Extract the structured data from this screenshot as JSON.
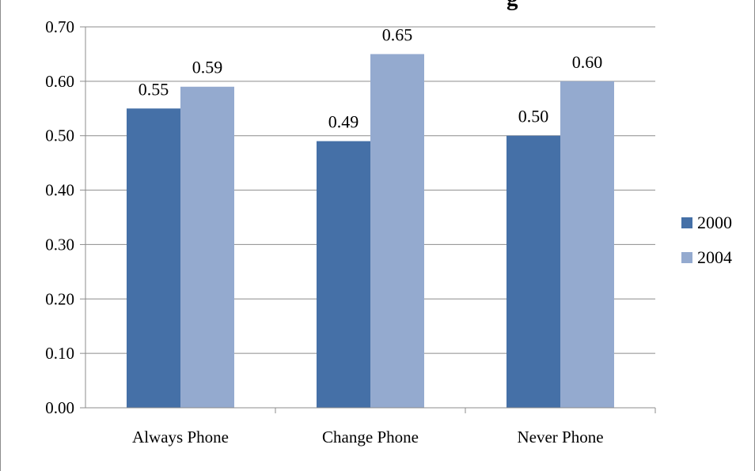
{
  "chart_data": {
    "type": "bar",
    "title_fragment": "g",
    "categories": [
      "Always Phone",
      "Change Phone",
      "Never Phone"
    ],
    "series": [
      {
        "name": "2000",
        "values": [
          0.55,
          0.49,
          0.5
        ],
        "color": "#4570A7"
      },
      {
        "name": "2004",
        "values": [
          0.59,
          0.65,
          0.6
        ],
        "color": "#94AACF"
      }
    ],
    "ylim": [
      0,
      0.7
    ],
    "yticks": [
      "0.00",
      "0.10",
      "0.20",
      "0.30",
      "0.40",
      "0.50",
      "0.60",
      "0.70"
    ],
    "grid": true,
    "legend_position": "right",
    "xlabel": "",
    "ylabel": ""
  }
}
